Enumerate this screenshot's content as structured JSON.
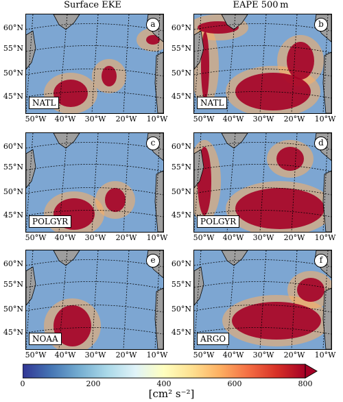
{
  "figure": {
    "col_titles": [
      "Surface EKE",
      "EAPE 500 m"
    ],
    "panels": [
      {
        "letter": "a",
        "label": "NATL"
      },
      {
        "letter": "b",
        "label": "NATL"
      },
      {
        "letter": "c",
        "label": "POLGYR"
      },
      {
        "letter": "d",
        "label": "POLGYR"
      },
      {
        "letter": "e",
        "label": "NOAA"
      },
      {
        "letter": "f",
        "label": "ARGO"
      }
    ],
    "lat_labels": [
      "60°N",
      "55°N",
      "50°N",
      "45°N"
    ],
    "lon_labels": [
      "50°W",
      "40°W",
      "30°W",
      "20°W",
      "10°W"
    ],
    "colorbar": {
      "ticks": [
        "0",
        "200",
        "400",
        "600",
        "800"
      ],
      "unit": "[cm² s⁻²]",
      "colors": [
        "#313695",
        "#4575b4",
        "#74add1",
        "#abd9e9",
        "#e0f3f8",
        "#ffffbf",
        "#fee090",
        "#fdae61",
        "#f46d43",
        "#d73027",
        "#a50026"
      ]
    }
  },
  "chart_data": {
    "type": "heatmap",
    "title": "",
    "colorbar_range": [
      0,
      800
    ],
    "colorbar_extend": "max",
    "colorbar_label": "[cm² s⁻²]",
    "columns": [
      "Surface EKE",
      "EAPE 500 m"
    ],
    "rows": [
      "NATL",
      "POLGYR",
      "NOAA / ARGO"
    ],
    "panels": [
      {
        "id": "a",
        "variable": "Surface EKE",
        "source": "NATL"
      },
      {
        "id": "b",
        "variable": "EAPE 500 m",
        "source": "NATL"
      },
      {
        "id": "c",
        "variable": "Surface EKE",
        "source": "POLGYR"
      },
      {
        "id": "d",
        "variable": "EAPE 500 m",
        "source": "POLGYR"
      },
      {
        "id": "e",
        "variable": "Surface EKE",
        "source": "NOAA"
      },
      {
        "id": "f",
        "variable": "EAPE 500 m",
        "source": "ARGO"
      }
    ],
    "lat_ticks": [
      "60°N",
      "55°N",
      "50°N",
      "45°N"
    ],
    "lon_ticks": [
      "50°W",
      "40°W",
      "30°W",
      "20°W",
      "10°W"
    ]
  }
}
